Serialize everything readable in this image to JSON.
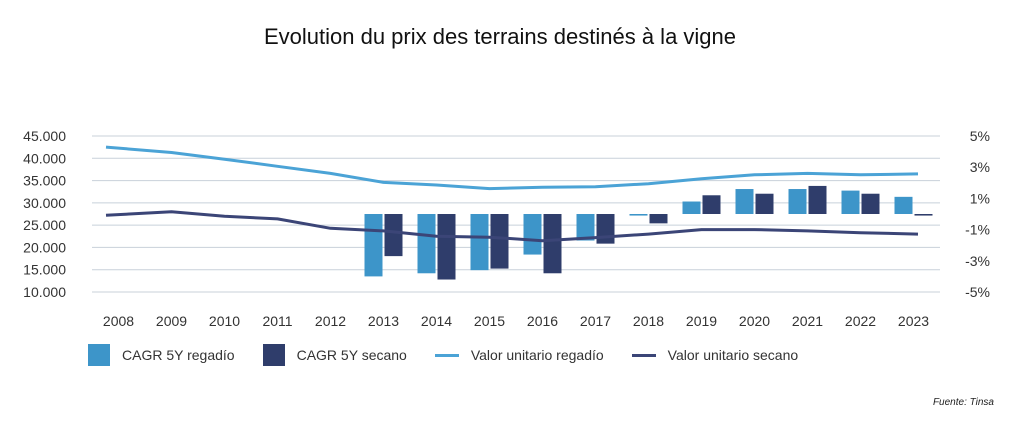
{
  "title": "Evolution du prix des terrains destinés à la vigne",
  "source": "Fuente: Tinsa",
  "colors": {
    "regadio": "#3d95c9",
    "secano": "#2f3d6b",
    "line_regadio": "#4ba3d6",
    "line_secano": "#3b4577",
    "grid": "#c8d1da"
  },
  "chart_data": {
    "type": "bar+line",
    "categories": [
      "2008",
      "2009",
      "2010",
      "2011",
      "2012",
      "2013",
      "2014",
      "2015",
      "2016",
      "2017",
      "2018",
      "2019",
      "2020",
      "2021",
      "2022",
      "2023"
    ],
    "left_axis": {
      "ticks": [
        "10.000",
        "15.000",
        "20.000",
        "25.000",
        "30.000",
        "35.000",
        "40.000",
        "45.000"
      ],
      "ylim": [
        10000,
        45000
      ]
    },
    "right_axis": {
      "ticks": [
        "5%",
        "3%",
        "1%",
        "-1%",
        "-3%",
        "-5%"
      ],
      "ylim": [
        -5,
        5
      ]
    },
    "bar_series": [
      {
        "name": "CAGR 5Y regadío",
        "axis": "right",
        "values": [
          null,
          null,
          null,
          null,
          null,
          -4.0,
          -3.8,
          -3.6,
          -2.6,
          -1.7,
          -0.1,
          0.8,
          1.6,
          1.6,
          1.5,
          1.1
        ]
      },
      {
        "name": "CAGR 5Y secano",
        "axis": "right",
        "values": [
          null,
          null,
          null,
          null,
          null,
          -2.7,
          -4.2,
          -3.5,
          -3.8,
          -1.9,
          -0.6,
          1.2,
          1.3,
          1.8,
          1.3,
          -0.1
        ]
      }
    ],
    "line_series": [
      {
        "name": "Valor unitario regadío",
        "axis": "left",
        "values": [
          42500,
          41300,
          39800,
          38200,
          36600,
          34600,
          34000,
          33200,
          33500,
          33600,
          34300,
          35400,
          36300,
          36600,
          36300,
          36500
        ]
      },
      {
        "name": "Valor unitario secano",
        "axis": "left",
        "values": [
          27200,
          28000,
          27000,
          26400,
          24300,
          23700,
          22500,
          22300,
          21500,
          22200,
          23000,
          24000,
          24000,
          23700,
          23300,
          23000
        ]
      }
    ],
    "legend_position": "bottom",
    "grid": true
  },
  "legend": [
    {
      "label": "CAGR 5Y regadío",
      "kind": "box",
      "color": "#3d95c9"
    },
    {
      "label": "CAGR 5Y secano",
      "kind": "box",
      "color": "#2f3d6b"
    },
    {
      "label": "Valor unitario regadío",
      "kind": "line",
      "color": "#4ba3d6"
    },
    {
      "label": "Valor unitario secano",
      "kind": "line",
      "color": "#3b4577"
    }
  ]
}
